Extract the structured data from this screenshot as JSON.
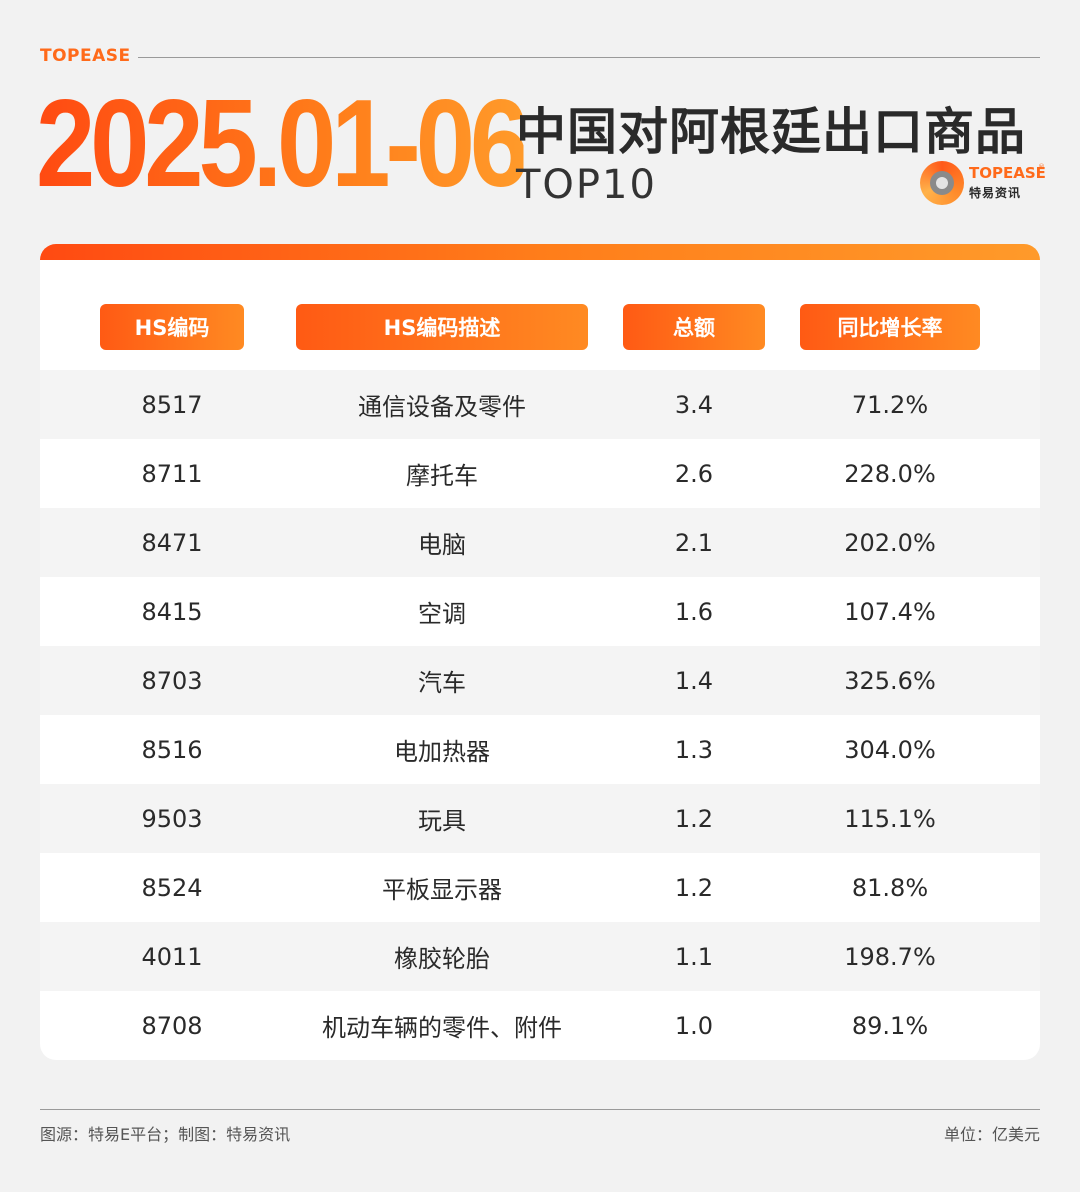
{
  "header": {
    "brand": "TOPEASE",
    "date_range": "2025.01-06",
    "title": "中国对阿根廷出口商品",
    "subtitle": "TOP10"
  },
  "logo": {
    "en": "TOPEASE",
    "reg": "®",
    "cn": "特易资讯"
  },
  "table": {
    "columns": [
      "HS编码",
      "HS编码描述",
      "总额",
      "同比增长率"
    ],
    "rows": [
      {
        "code": "8517",
        "desc": "通信设备及零件",
        "total": "3.4",
        "growth": "71.2%"
      },
      {
        "code": "8711",
        "desc": "摩托车",
        "total": "2.6",
        "growth": "228.0%"
      },
      {
        "code": "8471",
        "desc": "电脑",
        "total": "2.1",
        "growth": "202.0%"
      },
      {
        "code": "8415",
        "desc": "空调",
        "total": "1.6",
        "growth": "107.4%"
      },
      {
        "code": "8703",
        "desc": "汽车",
        "total": "1.4",
        "growth": "325.6%"
      },
      {
        "code": "8516",
        "desc": "电加热器",
        "total": "1.3",
        "growth": "304.0%"
      },
      {
        "code": "9503",
        "desc": "玩具",
        "total": "1.2",
        "growth": "115.1%"
      },
      {
        "code": "8524",
        "desc": "平板显示器",
        "total": "1.2",
        "growth": "81.8%"
      },
      {
        "code": "4011",
        "desc": "橡胶轮胎",
        "total": "1.1",
        "growth": "198.7%"
      },
      {
        "code": "8708",
        "desc": "机动车辆的零件、附件",
        "total": "1.0",
        "growth": "89.1%"
      }
    ]
  },
  "footer": {
    "source": "图源：特易E平台；制图：特易资讯",
    "unit": "单位：亿美元"
  },
  "colors": {
    "accent": "#ff6a1a",
    "accent_dark": "#ff4a12",
    "row_alt": "#f4f4f4"
  }
}
